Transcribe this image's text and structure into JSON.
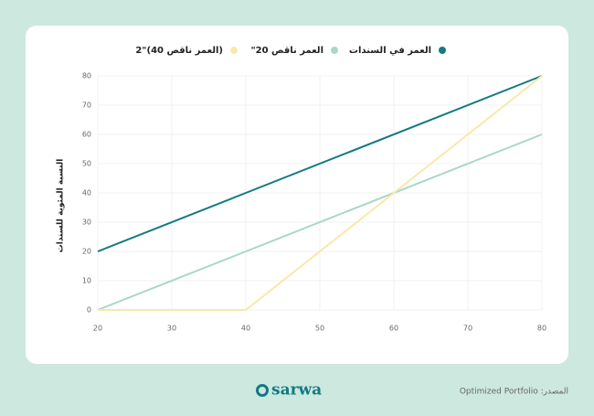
{
  "chart_data": {
    "type": "line",
    "ylabel": "النسبة المئوية للسندات",
    "x": [
      20,
      40,
      80
    ],
    "series": [
      {
        "name": "العمر في السندات",
        "color": "#127a82",
        "values": [
          20,
          40,
          80
        ]
      },
      {
        "name": "العمر ناقص 20\"",
        "color": "#a9d8c6",
        "values": [
          0,
          20,
          60
        ]
      },
      {
        "name": "(العمر ناقص 40)\"2",
        "color": "#f9e8a8",
        "values": [
          0,
          0,
          80
        ]
      }
    ],
    "xlim": [
      20,
      80
    ],
    "ylim": [
      0,
      80
    ],
    "xticks": [
      20,
      30,
      40,
      50,
      60,
      70,
      80
    ],
    "yticks": [
      0,
      10,
      20,
      30,
      40,
      50,
      60,
      70,
      80
    ],
    "grid": true,
    "legend": "top"
  },
  "footer": {
    "logo": "sarwa",
    "source": "المصدر: Optimized Portfolio"
  }
}
